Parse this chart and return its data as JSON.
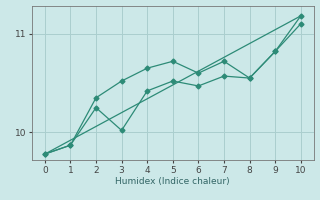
{
  "xlabel": "Humidex (Indice chaleur)",
  "bg_color": "#cce8e8",
  "line_color": "#2d8b77",
  "xlim": [
    -0.5,
    10.5
  ],
  "ylim": [
    9.72,
    11.28
  ],
  "yticks": [
    10,
    11
  ],
  "xticks": [
    0,
    1,
    2,
    3,
    4,
    5,
    6,
    7,
    8,
    9,
    10
  ],
  "grid_color": "#aacece",
  "series": [
    {
      "x": [
        0,
        1,
        2,
        3,
        4,
        5,
        6,
        7,
        8,
        9,
        10
      ],
      "y": [
        9.78,
        9.87,
        10.25,
        10.02,
        10.42,
        10.52,
        10.47,
        10.57,
        10.55,
        10.82,
        11.1
      ]
    },
    {
      "x": [
        0,
        1,
        2,
        3,
        4,
        5,
        6,
        7,
        8,
        9,
        10
      ],
      "y": [
        9.78,
        9.87,
        10.35,
        10.52,
        10.65,
        10.72,
        10.6,
        10.72,
        10.55,
        10.82,
        11.18
      ]
    },
    {
      "x": [
        0,
        10
      ],
      "y": [
        9.78,
        11.18
      ]
    }
  ],
  "markersize": 2.5,
  "linewidth": 0.9
}
